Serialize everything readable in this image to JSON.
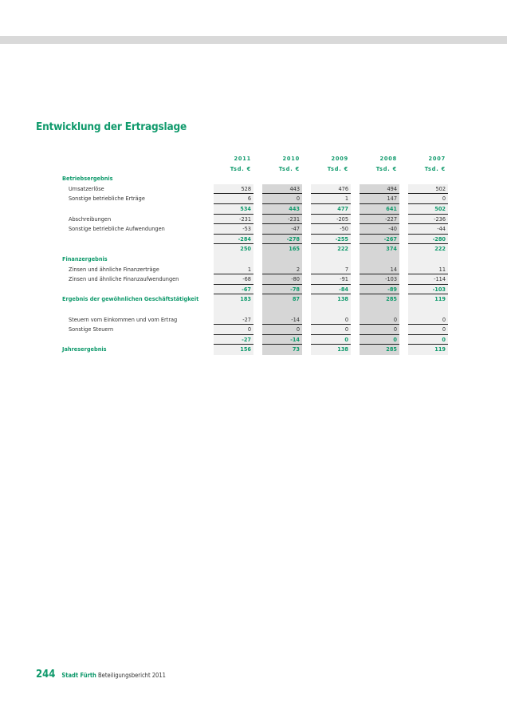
{
  "title": "Entwicklung der Ertragslage",
  "years": [
    "2011",
    "2010",
    "2009",
    "2008",
    "2007"
  ],
  "unit": "Tsd. €",
  "rows": [
    {
      "label": "Betriebsergebnis",
      "type": "heading",
      "values": []
    },
    {
      "label": "Umsatzerlöse",
      "type": "item",
      "values": [
        "528",
        "443",
        "476",
        "494",
        "502"
      ]
    },
    {
      "label": "Sonstige betriebliche Erträge",
      "type": "item",
      "values": [
        "6",
        "0",
        "1",
        "147",
        "0"
      ]
    },
    {
      "label": "",
      "type": "sum",
      "values": [
        "534",
        "443",
        "477",
        "641",
        "502"
      ]
    },
    {
      "label": "Abschreibungen",
      "type": "item",
      "values": [
        "-231",
        "-231",
        "-205",
        "-227",
        "-236"
      ]
    },
    {
      "label": "Sonstige betriebliche Aufwendungen",
      "type": "item",
      "values": [
        "-53",
        "-47",
        "-50",
        "-40",
        "-44"
      ]
    },
    {
      "label": "",
      "type": "sum",
      "values": [
        "-284",
        "-278",
        "-255",
        "-267",
        "-280"
      ]
    },
    {
      "label": "",
      "type": "total",
      "values": [
        "250",
        "165",
        "222",
        "374",
        "222"
      ]
    },
    {
      "label": "Finanzergebnis",
      "type": "heading",
      "values": []
    },
    {
      "label": "Zinsen und ähnliche Finanzerträge",
      "type": "item",
      "values": [
        "1",
        "2",
        "7",
        "14",
        "11"
      ]
    },
    {
      "label": "Zinsen und ähnliche Finanzaufwendungen",
      "type": "item",
      "values": [
        "-68",
        "-80",
        "-91",
        "-103",
        "-114"
      ]
    },
    {
      "label": "",
      "type": "sum",
      "values": [
        "-67",
        "-78",
        "-84",
        "-89",
        "-103"
      ]
    },
    {
      "label": "Ergebnis der gewöhnlichen Geschäftstätigkeit",
      "type": "total",
      "values": [
        "183",
        "87",
        "138",
        "285",
        "119"
      ]
    },
    {
      "label": "",
      "type": "blank",
      "values": []
    },
    {
      "label": "Steuern vom Einkommen und vom Ertrag",
      "type": "item",
      "values": [
        "-27",
        "-14",
        "0",
        "0",
        "0"
      ]
    },
    {
      "label": "Sonstige Steuern",
      "type": "item",
      "values": [
        "0",
        "0",
        "0",
        "0",
        "0"
      ]
    },
    {
      "label": "",
      "type": "sum",
      "values": [
        "-27",
        "-14",
        "0",
        "0",
        "0"
      ]
    },
    {
      "label": "Jahresergebnis",
      "type": "total",
      "values": [
        "156",
        "73",
        "138",
        "285",
        "119"
      ]
    }
  ],
  "footer": {
    "page": "244",
    "brand": "Stadt Fürth",
    "text": "Beteiligungsbericht 2011"
  },
  "colors": {
    "accent": "#109a6c",
    "shade_light": "#f0f0f0",
    "shade_dark": "#d6d6d6"
  }
}
